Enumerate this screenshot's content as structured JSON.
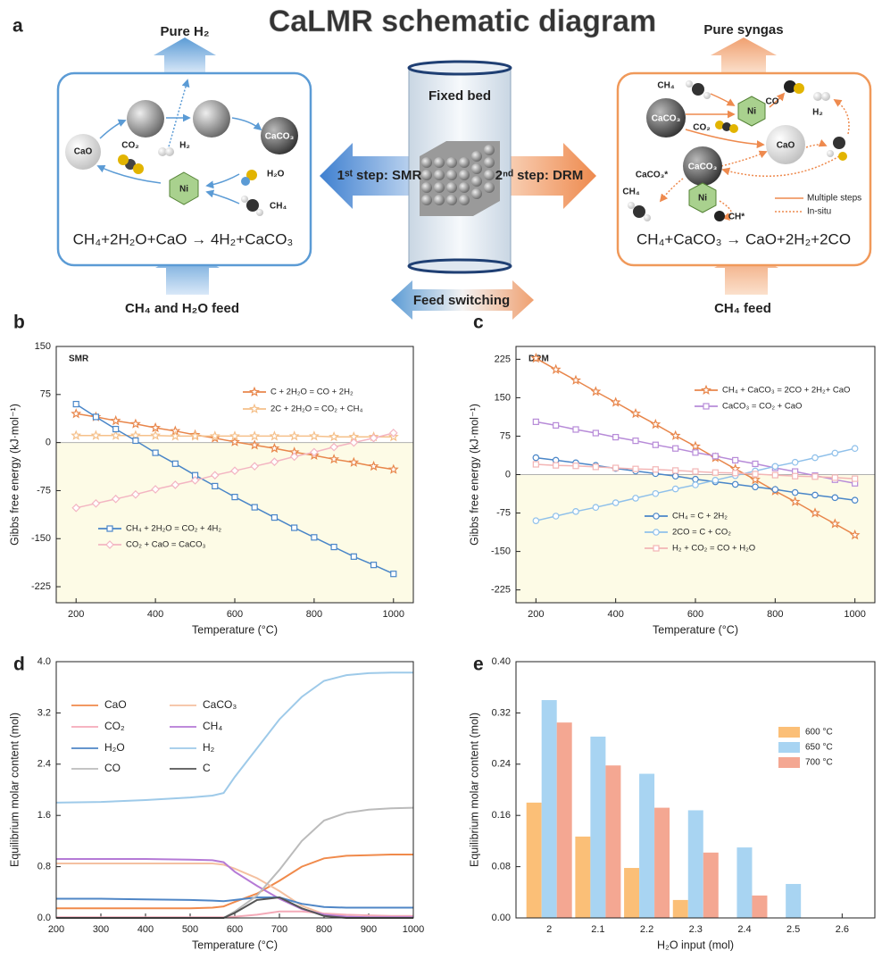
{
  "schematic": {
    "panel": "a",
    "title": "CaLMR schematic diagram",
    "left_output": "Pure H₂",
    "right_output": "Pure syngas",
    "reactor": "Fixed bed",
    "step1": "1ˢᵗ step: SMR",
    "step2": "2ⁿᵈ step: DRM",
    "switching": "Feed switching",
    "left_feed": "CH₄ and H₂O feed",
    "right_feed": "CH₄ feed",
    "left_box": {
      "cao": "CaO",
      "co2": "CO₂",
      "h2": "H₂",
      "h2o": "H₂O",
      "ni": "Ni",
      "ch4": "CH₄",
      "caco3": "CaCO₃",
      "equation": "CH₄+2H₂O+CaO → 4H₂+CaCO₃"
    },
    "right_box": {
      "ch4_top": "CH₄",
      "ni_top": "Ni",
      "co": "CO",
      "h2": "H₂",
      "caco3_top": "CaCO₃",
      "co2": "CO₂",
      "cao": "CaO",
      "caco3_mid": "CaCO₃",
      "caco3_star": "CaCO₃*",
      "ni_bottom": "Ni",
      "ch4_bottom": "CH₄",
      "ch_star": "CH*",
      "legend_solid": "Multiple steps",
      "legend_dotted": "In-situ",
      "equation": "CH₄+CaCO₃ → CaO+2H₂+2CO"
    }
  },
  "chart_data": [
    {
      "label": "b",
      "type": "line",
      "title": "SMR",
      "xlabel": "Temperature (°C)",
      "ylabel": "Gibbs free energy (kJ·mol⁻¹)",
      "x": [
        200,
        250,
        300,
        350,
        400,
        450,
        500,
        550,
        600,
        650,
        700,
        750,
        800,
        850,
        900,
        950,
        1000
      ],
      "xlim": [
        150,
        1050
      ],
      "xticks": [
        200,
        400,
        600,
        800,
        1000
      ],
      "ylim": [
        -250,
        150
      ],
      "yticks": [
        -225,
        -150,
        -75,
        0,
        75,
        150
      ],
      "shade_negative": true,
      "zero_line": true,
      "series": [
        {
          "name": "C + 2H₂O = CO + 2H₂",
          "color": "#e8864b",
          "marker": "star",
          "values": [
            45,
            40,
            34,
            29,
            23,
            18,
            12,
            7,
            1,
            -4,
            -9,
            -15,
            -20,
            -26,
            -31,
            -37,
            -42
          ]
        },
        {
          "name": "2C + 2H₂O = CO₂ + CH₄",
          "color": "#f5c08a",
          "marker": "star",
          "values": [
            11,
            11,
            11,
            11,
            11,
            10,
            10,
            10,
            10,
            10,
            10,
            10,
            10,
            9,
            9,
            9,
            9
          ]
        },
        {
          "name": "CH₄ + 2H₂O = CO₂ + 4H₂",
          "color": "#4a86c8",
          "marker": "square",
          "values": [
            60,
            40,
            21,
            3,
            -16,
            -33,
            -51,
            -68,
            -85,
            -101,
            -117,
            -133,
            -148,
            -163,
            -178,
            -191,
            -205
          ]
        },
        {
          "name": "CO₂ + CaO = CaCO₃",
          "color": "#f3b5c2",
          "marker": "diamond",
          "values": [
            -102,
            -95,
            -88,
            -81,
            -73,
            -66,
            -59,
            -51,
            -44,
            -37,
            -30,
            -22,
            -15,
            -7,
            0,
            7,
            15
          ]
        }
      ]
    },
    {
      "label": "c",
      "type": "line",
      "title": "DRM",
      "xlabel": "Temperature (°C)",
      "ylabel": "Gibbs free energy (kJ·mol⁻¹)",
      "x": [
        200,
        250,
        300,
        350,
        400,
        450,
        500,
        550,
        600,
        650,
        700,
        750,
        800,
        850,
        900,
        950,
        1000
      ],
      "xlim": [
        150,
        1050
      ],
      "xticks": [
        200,
        400,
        600,
        800,
        1000
      ],
      "ylim": [
        -250,
        250
      ],
      "yticks": [
        -225,
        -150,
        -75,
        0,
        75,
        150,
        225
      ],
      "shade_negative": true,
      "zero_line": true,
      "series": [
        {
          "name": "CH₄ + CaCO₃ = 2CO + 2H₂+ CaO",
          "color": "#e8864b",
          "marker": "star",
          "values": [
            227,
            205,
            184,
            162,
            141,
            119,
            98,
            76,
            55,
            33,
            11,
            -10,
            -32,
            -53,
            -75,
            -96,
            -118
          ]
        },
        {
          "name": "CaCO₃ = CO₂ + CaO",
          "color": "#b78bd8",
          "marker": "square",
          "values": [
            103,
            96,
            88,
            81,
            73,
            66,
            58,
            51,
            43,
            36,
            28,
            21,
            13,
            6,
            -2,
            -10,
            -17
          ]
        },
        {
          "name": "CH₄ = C + 2H₂",
          "color": "#4a86c8",
          "marker": "circle",
          "values": [
            33,
            28,
            23,
            18,
            12,
            7,
            2,
            -3,
            -9,
            -14,
            -19,
            -24,
            -29,
            -35,
            -40,
            -45,
            -50
          ]
        },
        {
          "name": "2CO = C + CO₂",
          "color": "#8fc0ea",
          "marker": "circle",
          "values": [
            -90,
            -81,
            -72,
            -64,
            -55,
            -46,
            -37,
            -28,
            -20,
            -11,
            -2,
            7,
            16,
            24,
            33,
            42,
            51
          ]
        },
        {
          "name": "H₂ + CO₂ = CO + H₂O",
          "color": "#f3b5b5",
          "marker": "square",
          "values": [
            20,
            18,
            17,
            15,
            13,
            11,
            10,
            8,
            6,
            4,
            3,
            1,
            -1,
            -3,
            -4,
            -6,
            -8
          ]
        }
      ]
    },
    {
      "label": "d",
      "type": "line",
      "xlabel": "Temperature (°C)",
      "ylabel": "Equilibrium molar content (mol)",
      "x": [
        200,
        300,
        400,
        500,
        550,
        575,
        600,
        650,
        700,
        750,
        800,
        850,
        900,
        950,
        1000
      ],
      "xlim": [
        200,
        1000
      ],
      "xticks": [
        200,
        300,
        400,
        500,
        600,
        700,
        800,
        900,
        1000
      ],
      "ylim": [
        0,
        4
      ],
      "yticks": [
        {
          "value": 0,
          "label": "0.0"
        },
        0.8,
        1.6,
        2.4,
        3.2,
        {
          "value": 4,
          "label": "4.0"
        }
      ],
      "series": [
        {
          "name": "CaO",
          "color": "#f08a4b",
          "values": [
            0.15,
            0.15,
            0.15,
            0.15,
            0.16,
            0.18,
            0.25,
            0.38,
            0.58,
            0.8,
            0.93,
            0.97,
            0.98,
            0.99,
            0.99
          ]
        },
        {
          "name": "CaCO₃",
          "color": "#f4c0a0",
          "values": [
            0.85,
            0.85,
            0.85,
            0.85,
            0.85,
            0.83,
            0.77,
            0.62,
            0.42,
            0.19,
            0.06,
            0.02,
            0.01,
            0.01,
            0.01
          ]
        },
        {
          "name": "CO₂",
          "color": "#f4aab8",
          "values": [
            0.01,
            0.01,
            0.01,
            0.01,
            0.01,
            0.01,
            0.02,
            0.05,
            0.1,
            0.1,
            0.07,
            0.05,
            0.04,
            0.03,
            0.03
          ]
        },
        {
          "name": "CH₄",
          "color": "#b57ad6",
          "values": [
            0.92,
            0.92,
            0.92,
            0.91,
            0.9,
            0.87,
            0.72,
            0.5,
            0.3,
            0.14,
            0.05,
            0.02,
            0.01,
            0.01,
            0.01
          ]
        },
        {
          "name": "H₂O",
          "color": "#4f86c6",
          "values": [
            0.3,
            0.3,
            0.29,
            0.28,
            0.27,
            0.26,
            0.28,
            0.32,
            0.32,
            0.22,
            0.17,
            0.16,
            0.16,
            0.16,
            0.16
          ]
        },
        {
          "name": "H₂",
          "color": "#9ecae9",
          "values": [
            1.8,
            1.81,
            1.84,
            1.88,
            1.91,
            1.95,
            2.2,
            2.65,
            3.1,
            3.45,
            3.7,
            3.79,
            3.82,
            3.83,
            3.83
          ]
        },
        {
          "name": "CO",
          "color": "#bbbbbb",
          "values": [
            0,
            0,
            0,
            0,
            0,
            0,
            0.1,
            0.35,
            0.75,
            1.2,
            1.52,
            1.64,
            1.69,
            1.71,
            1.72
          ]
        },
        {
          "name": "C",
          "color": "#555555",
          "values": [
            0,
            0,
            0,
            0,
            0,
            0,
            0.08,
            0.28,
            0.32,
            0.15,
            0.03,
            0,
            0,
            0,
            0
          ]
        }
      ]
    },
    {
      "label": "e",
      "type": "bar",
      "xlabel": "H₂O input (mol)",
      "ylabel": "Equilibrium molar content (mol)",
      "categories": [
        "2",
        "2.1",
        "2.2",
        "2.3",
        "2.4",
        "2.5",
        "2.6"
      ],
      "ylim": [
        0,
        0.4
      ],
      "yticks": [
        {
          "value": 0,
          "label": "0.00"
        },
        0.08,
        0.16,
        0.24,
        0.32,
        {
          "value": 0.4,
          "label": "0.40"
        }
      ],
      "series": [
        {
          "name": "600 °C",
          "color": "#fbbf77",
          "values": [
            0.18,
            0.127,
            0.078,
            0.028,
            0,
            0,
            0
          ]
        },
        {
          "name": "650 °C",
          "color": "#a8d4f2",
          "values": [
            0.34,
            0.283,
            0.225,
            0.168,
            0.11,
            0.053,
            0
          ]
        },
        {
          "name": "700 °C",
          "color": "#f4a792",
          "values": [
            0.305,
            0.238,
            0.172,
            0.102,
            0.035,
            0,
            0
          ]
        }
      ]
    }
  ]
}
